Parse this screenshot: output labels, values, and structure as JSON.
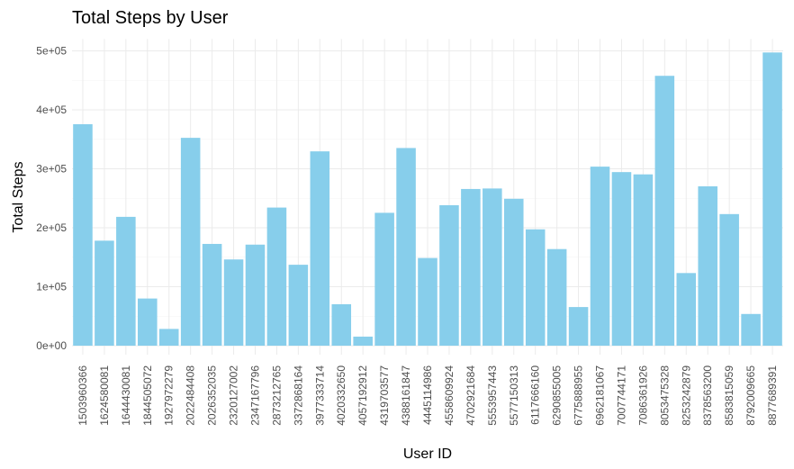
{
  "chart_data": {
    "type": "bar",
    "title": "Total Steps by User",
    "xlabel": "User ID",
    "ylabel": "Total Steps",
    "ylim": [
      0,
      520000
    ],
    "y_ticks": [
      0,
      100000,
      200000,
      300000,
      400000,
      500000
    ],
    "y_tick_labels": [
      "0e+00",
      "1e+05",
      "2e+05",
      "3e+05",
      "4e+05",
      "5e+05"
    ],
    "grid": true,
    "bar_color": "#87CEEB",
    "categories": [
      "1503960366",
      "1624580081",
      "1644430081",
      "1844505072",
      "1927972279",
      "2022484408",
      "2026352035",
      "2320127002",
      "2347167796",
      "2873212765",
      "3372868164",
      "3977333714",
      "4020332650",
      "4057192912",
      "4319703577",
      "4388161847",
      "4445114986",
      "4558609924",
      "4702921684",
      "5553957443",
      "5577150313",
      "6117666160",
      "6290855005",
      "6775888955",
      "6962181067",
      "7007744171",
      "7086361926",
      "8053475328",
      "8253242879",
      "8378563200",
      "8583815059",
      "8792009665",
      "8877689391"
    ],
    "values": [
      375619,
      178061,
      218489,
      79982,
      28400,
      352490,
      172573,
      146223,
      171354,
      234229,
      137233,
      329537,
      70284,
      15352,
      225334,
      335232,
      148693,
      238239,
      265734,
      266576,
      249133,
      197308,
      163837,
      65512,
      303639,
      294409,
      290525,
      457662,
      123161,
      270249,
      223154,
      53758,
      497241
    ]
  }
}
